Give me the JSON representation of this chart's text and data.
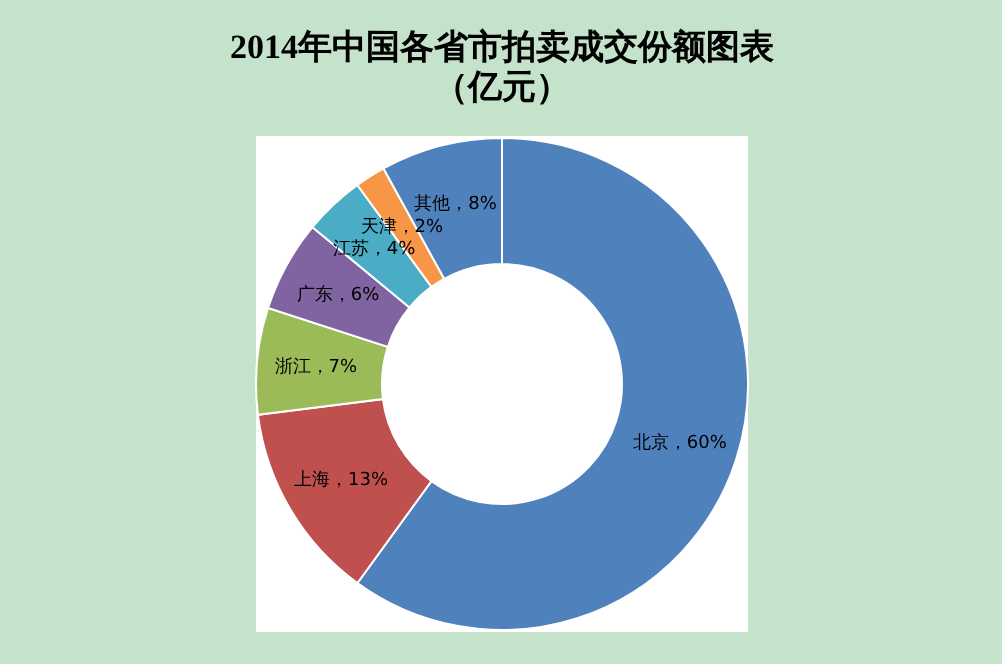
{
  "chart_data": {
    "type": "donut",
    "title": [
      "2014年中国各省市拍卖成交份额图表",
      "（亿元）"
    ],
    "categories": [
      "北京",
      "上海",
      "浙江",
      "广东",
      "江苏",
      "天津",
      "其他"
    ],
    "values": [
      60,
      13,
      7,
      6,
      4,
      2,
      8
    ],
    "colors": [
      "#4f81bd",
      "#c0504d",
      "#9bbb59",
      "#8064a2",
      "#4bacc6",
      "#f79646",
      "#4f81bd"
    ],
    "value_labels": [
      "60%",
      "13%",
      "7%",
      "6%",
      "4%",
      "2%",
      "8%"
    ],
    "legend": false
  }
}
